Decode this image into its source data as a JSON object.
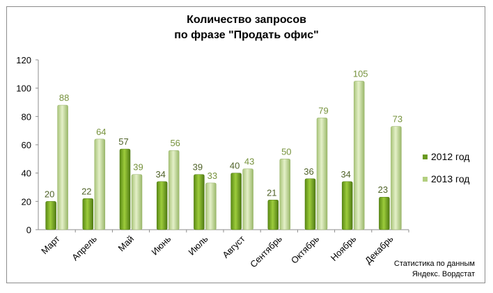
{
  "chart_data": {
    "type": "bar",
    "title": [
      "Количество запросов",
      "по фразе \"Продать офис\""
    ],
    "categories": [
      "Март",
      "Апрель",
      "Май",
      "Июнь",
      "Июль",
      "Август",
      "Сентябрь",
      "Октябрь",
      "Ноябрь",
      "Декабрь"
    ],
    "series": [
      {
        "name": "2012 год",
        "values": [
          20,
          22,
          57,
          34,
          39,
          40,
          21,
          36,
          34,
          23
        ],
        "color": "#6a9a1f"
      },
      {
        "name": "2013 год",
        "values": [
          88,
          64,
          39,
          56,
          33,
          43,
          50,
          79,
          105,
          73
        ],
        "color": "#b3cf80"
      }
    ],
    "ylim": [
      0,
      120
    ],
    "yticks": [
      "0",
      "20",
      "40",
      "60",
      "80",
      "100",
      "120"
    ],
    "grid": false,
    "legend_position": "right",
    "xlabel": "",
    "ylabel": ""
  },
  "note": [
    "Статистика по данным",
    "Яндекс. Вордстат"
  ]
}
